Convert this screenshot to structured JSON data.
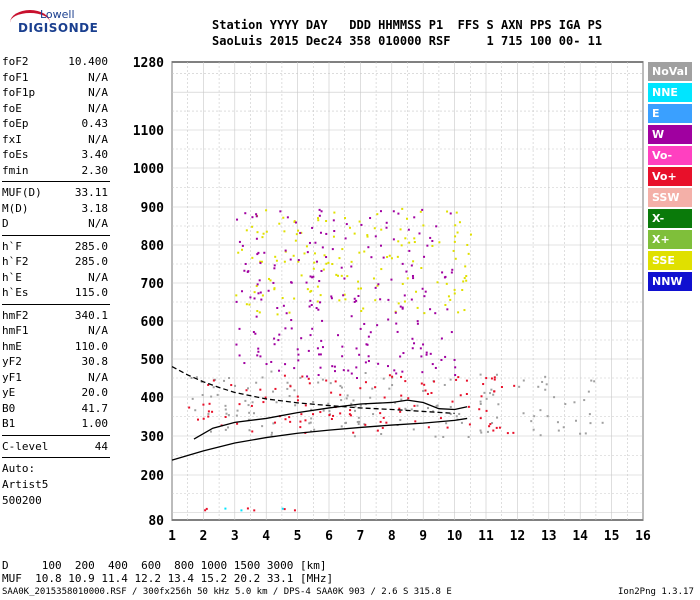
{
  "logo": {
    "line1": "Lowell",
    "line2": "DIGISONDE"
  },
  "header": {
    "row1": "Station YYYY DAY   DDD HHMMSS P1  FFS S AXN PPS IGA PS",
    "row2": "SaoLuis 2015 Dec24 358 010000 RSF     1 715 100 00- 11"
  },
  "params_groups": [
    [
      {
        "k": "foF2",
        "v": "10.400"
      },
      {
        "k": "foF1",
        "v": "N/A"
      },
      {
        "k": "foF1p",
        "v": "N/A"
      },
      {
        "k": "foE",
        "v": "N/A"
      },
      {
        "k": "foEp",
        "v": "0.43"
      },
      {
        "k": "fxI",
        "v": "N/A"
      },
      {
        "k": "foEs",
        "v": "3.40"
      },
      {
        "k": "fmin",
        "v": "2.30"
      }
    ],
    [
      {
        "k": "MUF(D)",
        "v": "33.11"
      },
      {
        "k": "M(D)",
        "v": "3.18"
      },
      {
        "k": "D",
        "v": "N/A"
      }
    ],
    [
      {
        "k": "h`F",
        "v": "285.0"
      },
      {
        "k": "h`F2",
        "v": "285.0"
      },
      {
        "k": "h`E",
        "v": "N/A"
      },
      {
        "k": "h`Es",
        "v": "115.0"
      }
    ],
    [
      {
        "k": "hmF2",
        "v": "340.1"
      },
      {
        "k": "hmF1",
        "v": "N/A"
      },
      {
        "k": "hmE",
        "v": "110.0"
      },
      {
        "k": "yF2",
        "v": "30.8"
      },
      {
        "k": "yF1",
        "v": "N/A"
      },
      {
        "k": "yE",
        "v": "20.0"
      },
      {
        "k": "B0",
        "v": "41.7"
      },
      {
        "k": "B1",
        "v": "1.00"
      }
    ],
    [
      {
        "k": "C-level",
        "v": "44"
      }
    ]
  ],
  "auto": {
    "line1": "Auto:",
    "line2": "Artist5",
    "line3": "500200"
  },
  "legend": [
    {
      "label": "NoVal",
      "color": "#a0a0a0"
    },
    {
      "label": "NNE",
      "color": "#00e5ff"
    },
    {
      "label": "E",
      "color": "#3aa0ff"
    },
    {
      "label": "W",
      "color": "#a000a0"
    },
    {
      "label": "Vo-",
      "color": "#ff40c0"
    },
    {
      "label": "Vo+",
      "color": "#e8102a"
    },
    {
      "label": "SSW",
      "color": "#f4b0a8"
    },
    {
      "label": "X-",
      "color": "#0a7a0a"
    },
    {
      "label": "X+",
      "color": "#7fbf3a"
    },
    {
      "label": "SSE",
      "color": "#e0e000"
    },
    {
      "label": "NNW",
      "color": "#1010d0"
    }
  ],
  "bottom": {
    "row1": "D     100  200  400  600  800 1000 1500 3000 [km]",
    "row2": "MUF  10.8 10.9 11.4 12.2 13.4 15.2 20.2 33.1 [MHz]",
    "footer_left": "SAA0K_2015358010000.RSF / 300fx256h 50 kHz 5.0 km / DPS-4 SAA0K 903 / 2.6 S 315.8 E",
    "footer_right": "Ion2Png 1.3.17"
  },
  "chart_data": {
    "type": "scatter",
    "x_ticks": [
      1,
      2,
      3,
      4,
      5,
      6,
      7,
      8,
      9,
      10,
      11,
      12,
      13,
      14,
      15,
      16
    ],
    "y_ticks": [
      80,
      200,
      300,
      400,
      500,
      600,
      700,
      800,
      900,
      1000,
      1100,
      1280
    ],
    "xlim": [
      1,
      16
    ],
    "ylim": [
      80,
      1280
    ],
    "y_scale": "nonlinear",
    "grid": true,
    "traces": {
      "profile_dashed": {
        "style": "dashed",
        "points": [
          [
            1.0,
            480
          ],
          [
            1.5,
            458
          ],
          [
            2.0,
            440
          ],
          [
            2.5,
            425
          ],
          [
            3.0,
            412
          ],
          [
            4.0,
            395
          ],
          [
            5.0,
            385
          ],
          [
            6.0,
            378
          ],
          [
            7.0,
            372
          ],
          [
            8.0,
            368
          ],
          [
            9.0,
            363
          ],
          [
            10.0,
            358
          ]
        ]
      },
      "virtual_height_trace": {
        "style": "solid",
        "points": [
          [
            1.0,
            238
          ],
          [
            2.0,
            262
          ],
          [
            3.0,
            282
          ],
          [
            4.0,
            296
          ],
          [
            5.0,
            307
          ],
          [
            6.0,
            315
          ],
          [
            7.0,
            322
          ],
          [
            8.0,
            328
          ],
          [
            9.0,
            333
          ],
          [
            10.0,
            340
          ],
          [
            10.4,
            345
          ]
        ]
      },
      "profile_solid": {
        "style": "solid",
        "points": [
          [
            1.7,
            292
          ],
          [
            2.3,
            320
          ],
          [
            3.0,
            335
          ],
          [
            4.0,
            345
          ],
          [
            5.0,
            360
          ],
          [
            6.0,
            372
          ],
          [
            7.0,
            382
          ],
          [
            8.0,
            386
          ],
          [
            8.5,
            392
          ],
          [
            9.0,
            386
          ],
          [
            9.5,
            370
          ],
          [
            10.0,
            368
          ],
          [
            10.4,
            375
          ]
        ]
      }
    },
    "echo_regions": [
      {
        "name": "NoVal",
        "x_range": [
          1.5,
          14.8
        ],
        "y_range": [
          300,
          470
        ]
      },
      {
        "name": "Vo+",
        "x_range": [
          1.5,
          12.0
        ],
        "y_range": [
          310,
          460
        ]
      },
      {
        "name": "SSE",
        "x_range": [
          3.0,
          10.5
        ],
        "y_range": [
          620,
          900
        ]
      },
      {
        "name": "W",
        "x_range": [
          3.0,
          10.0
        ],
        "y_range": [
          450,
          900
        ]
      },
      {
        "name": "Vo+",
        "x_range": [
          1.6,
          5.0
        ],
        "y_range": [
          100,
          125
        ]
      },
      {
        "name": "NNE",
        "x_range": [
          1.6,
          5.3
        ],
        "y_range": [
          108,
          118
        ]
      }
    ]
  }
}
